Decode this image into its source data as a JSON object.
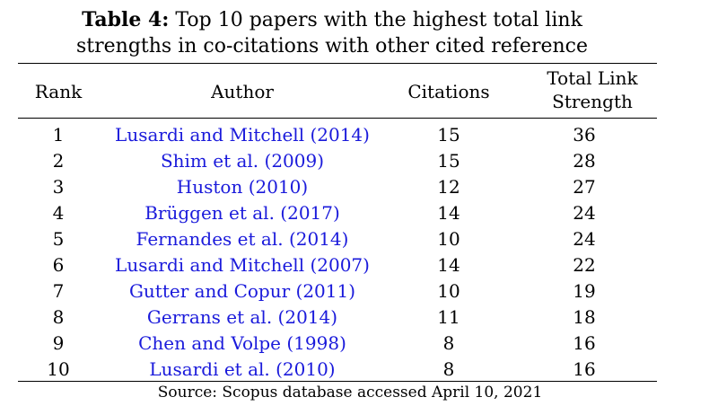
{
  "caption": {
    "label": "Table 4:",
    "text": "Top 10 papers with the highest total link",
    "text_line2": "strengths in co-citations with other cited reference"
  },
  "columns": {
    "rank": "Rank",
    "author": "Author",
    "citations": "Citations",
    "tls_line1": "Total Link",
    "tls_line2": "Strength"
  },
  "rows": [
    {
      "rank": "1",
      "author": "Lusardi and Mitchell (2014)",
      "citations": "15",
      "tls": "36"
    },
    {
      "rank": "2",
      "author": "Shim et al. (2009)",
      "citations": "15",
      "tls": "28"
    },
    {
      "rank": "3",
      "author": "Huston (2010)",
      "citations": "12",
      "tls": "27"
    },
    {
      "rank": "4",
      "author": "Brüggen et al. (2017)",
      "citations": "14",
      "tls": "24"
    },
    {
      "rank": "5",
      "author": "Fernandes et al. (2014)",
      "citations": "10",
      "tls": "24"
    },
    {
      "rank": "6",
      "author": "Lusardi and Mitchell (2007)",
      "citations": "14",
      "tls": "22"
    },
    {
      "rank": "7",
      "author": "Gutter and Copur (2011)",
      "citations": "10",
      "tls": "19"
    },
    {
      "rank": "8",
      "author": "Gerrans et al. (2014)",
      "citations": "11",
      "tls": "18"
    },
    {
      "rank": "9",
      "author": "Chen and Volpe (1998)",
      "citations": "8",
      "tls": "16"
    },
    {
      "rank": "10",
      "author": "Lusardi et al. (2010)",
      "citations": "8",
      "tls": "16"
    }
  ],
  "source": "Source: Scopus database accessed April 10, 2021",
  "colors": {
    "author_link": "#1a1adb",
    "text": "#000000"
  }
}
